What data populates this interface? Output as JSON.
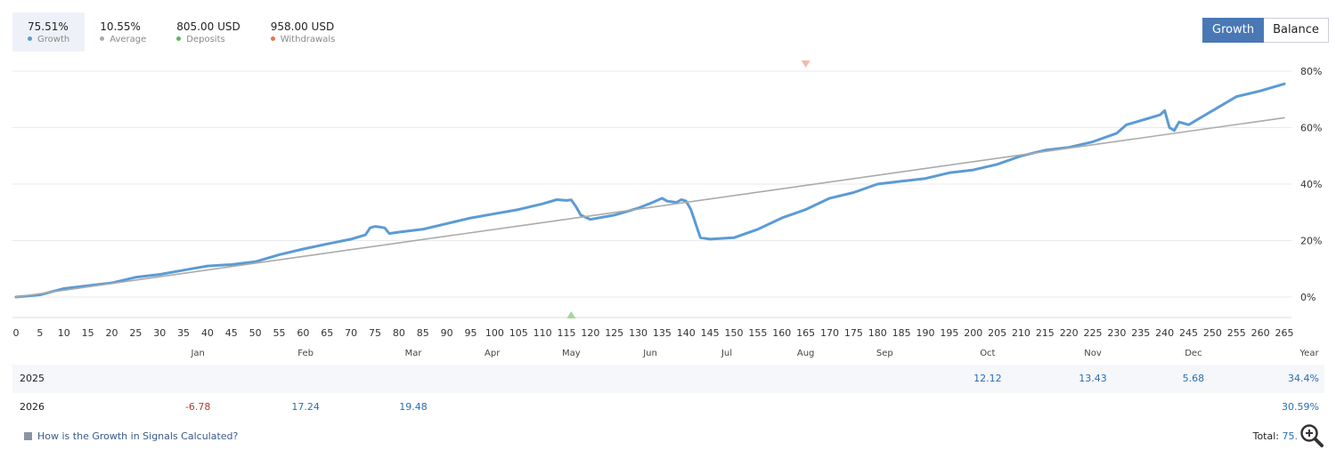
{
  "legend": [
    {
      "value": "75.51%",
      "label": "Growth",
      "color": "#5b9bd5"
    },
    {
      "value": "10.55%",
      "label": "Average",
      "color": "#aaaaaa"
    },
    {
      "value": "805.00 USD",
      "label": "Deposits",
      "color": "#5cb85c"
    },
    {
      "value": "958.00 USD",
      "label": "Withdrawals",
      "color": "#e8724a"
    }
  ],
  "toggle": {
    "growth_label": "Growth",
    "balance_label": "Balance"
  },
  "chart_data": {
    "type": "line",
    "x_ticks": [
      0,
      5,
      10,
      15,
      20,
      25,
      30,
      35,
      40,
      45,
      50,
      55,
      60,
      65,
      70,
      75,
      80,
      85,
      90,
      95,
      100,
      105,
      110,
      115,
      120,
      125,
      130,
      135,
      140,
      145,
      150,
      155,
      160,
      165,
      170,
      175,
      180,
      185,
      190,
      195,
      200,
      205,
      210,
      215,
      220,
      225,
      230,
      235,
      240,
      245,
      250,
      255,
      260,
      265
    ],
    "y_ticks": [
      "0%",
      "20%",
      "40%",
      "60%",
      "80%"
    ],
    "ylim": [
      -7,
      82
    ],
    "xlim": [
      0,
      265
    ],
    "months": [
      {
        "label": "Jan",
        "x": 38
      },
      {
        "label": "Feb",
        "x": 60.5
      },
      {
        "label": "Mar",
        "x": 83
      },
      {
        "label": "Apr",
        "x": 99.5
      },
      {
        "label": "May",
        "x": 116
      },
      {
        "label": "Jun",
        "x": 132.5
      },
      {
        "label": "Jul",
        "x": 148.5
      },
      {
        "label": "Aug",
        "x": 165
      },
      {
        "label": "Sep",
        "x": 181.5
      },
      {
        "label": "Oct",
        "x": 203
      },
      {
        "label": "Nov",
        "x": 225
      },
      {
        "label": "Dec",
        "x": 246
      }
    ],
    "year_label": "Year",
    "grid": true,
    "series": [
      {
        "name": "Growth",
        "color": "#5b9bd5",
        "x": [
          0,
          5,
          10,
          15,
          20,
          25,
          30,
          35,
          40,
          45,
          50,
          55,
          60,
          65,
          70,
          73,
          74,
          75,
          76,
          77,
          78,
          80,
          85,
          90,
          95,
          100,
          105,
          110,
          113,
          115,
          116,
          117,
          118,
          120,
          125,
          130,
          133,
          135,
          136,
          138,
          139,
          140,
          141,
          142,
          143,
          145,
          150,
          155,
          160,
          165,
          170,
          175,
          180,
          185,
          190,
          195,
          200,
          205,
          210,
          215,
          220,
          225,
          230,
          232,
          234,
          236,
          238,
          239,
          240,
          241,
          242,
          243,
          245,
          250,
          255,
          260,
          265
        ],
        "y": [
          0,
          0.8,
          3,
          4,
          5,
          7,
          8,
          9.5,
          11,
          11.5,
          12.5,
          15,
          17,
          18.8,
          20.5,
          22,
          24.5,
          25,
          24.8,
          24.5,
          22.5,
          23,
          24,
          26,
          28,
          29.5,
          31,
          33,
          34.5,
          34.2,
          34.4,
          32,
          29,
          27.5,
          29,
          31.5,
          33.5,
          35,
          34,
          33.5,
          34.5,
          34,
          31,
          26,
          21,
          20.5,
          21,
          24,
          28,
          31,
          35,
          37,
          40,
          41,
          42,
          44,
          45,
          47,
          50,
          52,
          53,
          55,
          58,
          61,
          62,
          63,
          64,
          64.5,
          66,
          60,
          59,
          62,
          61,
          66,
          71,
          73,
          75.5
        ]
      },
      {
        "name": "Average",
        "color": "#aaaaaa",
        "x": [
          0,
          265
        ],
        "y": [
          0,
          63.5
        ]
      }
    ],
    "markers": [
      {
        "type": "withdrawal",
        "x": 165,
        "color": "#f6b9a6"
      },
      {
        "type": "deposit",
        "x": 116,
        "color": "#a6d69a"
      }
    ]
  },
  "years": [
    {
      "year": "2025",
      "cells": [
        {
          "month": "Oct",
          "value": "12.12",
          "sign": "pos"
        },
        {
          "month": "Nov",
          "value": "13.43",
          "sign": "pos"
        },
        {
          "month": "Dec",
          "value": "5.68",
          "sign": "pos"
        }
      ],
      "total": "34.4%"
    },
    {
      "year": "2026",
      "cells": [
        {
          "month": "Jan",
          "value": "-6.78",
          "sign": "neg"
        },
        {
          "month": "Feb",
          "value": "17.24",
          "sign": "pos"
        },
        {
          "month": "Mar",
          "value": "19.48",
          "sign": "pos"
        }
      ],
      "total": "30.59%"
    }
  ],
  "footer": {
    "link_text": "How is the Growth in Signals Calculated?",
    "total_label": "Total:",
    "total_value": "75."
  },
  "icons": {
    "info": "info-square-icon",
    "zoom": "zoom-in-icon"
  }
}
